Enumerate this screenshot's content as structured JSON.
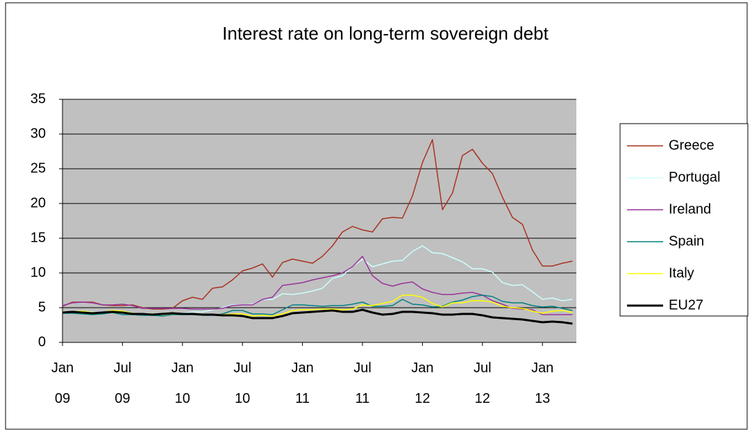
{
  "chart_data": {
    "type": "line",
    "title": "Interest rate on long-term sovereign debt",
    "categories": [
      "Jan 09",
      null,
      null,
      null,
      null,
      null,
      "Jul 09",
      null,
      null,
      null,
      null,
      null,
      "Jan 10",
      null,
      null,
      null,
      null,
      null,
      "Jul 10",
      null,
      null,
      null,
      null,
      null,
      "Jan 11",
      null,
      null,
      null,
      null,
      null,
      "Jul 11",
      null,
      null,
      null,
      null,
      null,
      "Jan 12",
      null,
      null,
      null,
      null,
      null,
      "Jul 12",
      null,
      null,
      null,
      null,
      null,
      "Jan 13",
      null,
      null,
      null
    ],
    "ylim": [
      0,
      35
    ],
    "yticks": [
      0,
      5,
      10,
      15,
      20,
      25,
      30,
      35
    ],
    "grid": true,
    "legend": "right",
    "series": [
      {
        "name": "Greece",
        "color": "#a83220",
        "linewidth": 1.5,
        "values": [
          5.2,
          5.8,
          5.8,
          5.8,
          5.4,
          5.3,
          5.3,
          5.4,
          5.0,
          4.8,
          4.8,
          4.9,
          6.0,
          6.5,
          6.2,
          7.8,
          8.0,
          9.0,
          10.3,
          10.7,
          11.3,
          9.4,
          11.5,
          12.0,
          11.7,
          11.4,
          12.4,
          13.9,
          15.9,
          16.7,
          16.2,
          15.9,
          17.8,
          18.0,
          17.9,
          21.1,
          25.9,
          29.2,
          19.1,
          21.5,
          26.9,
          27.8,
          25.8,
          24.3,
          20.9,
          18.0,
          17.0,
          13.3,
          11.0,
          11.0,
          11.4,
          11.7
        ]
      },
      {
        "name": "Portugal",
        "color": "#ccffff",
        "linewidth": 1.5,
        "values": [
          4.4,
          4.4,
          4.5,
          4.4,
          4.3,
          4.4,
          4.4,
          4.2,
          4.2,
          4.1,
          4.0,
          4.1,
          4.2,
          4.4,
          4.4,
          4.7,
          5.0,
          5.4,
          5.4,
          5.5,
          6.2,
          6.2,
          7.0,
          6.9,
          7.1,
          7.4,
          7.8,
          9.2,
          9.6,
          10.9,
          12.0,
          10.9,
          11.3,
          11.7,
          11.8,
          13.1,
          13.9,
          12.9,
          12.8,
          12.2,
          11.6,
          10.6,
          10.6,
          10.1,
          8.6,
          8.2,
          8.3,
          7.3,
          6.2,
          6.4,
          6.0,
          6.2
        ]
      },
      {
        "name": "Ireland",
        "color": "#993399",
        "linewidth": 1.5,
        "values": [
          5.3,
          5.7,
          5.8,
          5.7,
          5.4,
          5.4,
          5.5,
          5.3,
          4.9,
          4.9,
          4.9,
          4.9,
          4.9,
          4.8,
          4.8,
          4.8,
          4.9,
          5.3,
          5.4,
          5.4,
          6.2,
          6.5,
          8.2,
          8.4,
          8.6,
          9.0,
          9.3,
          9.6,
          10.0,
          10.9,
          12.4,
          9.6,
          8.5,
          8.1,
          8.5,
          8.7,
          7.7,
          7.2,
          6.9,
          6.9,
          7.1,
          7.2,
          6.8,
          6.0,
          5.5,
          4.9,
          4.8,
          4.7,
          4.0,
          4.0,
          4.0,
          4.0
        ]
      },
      {
        "name": "Spain",
        "color": "#008080",
        "linewidth": 1.5,
        "values": [
          4.2,
          4.2,
          4.1,
          4.0,
          4.1,
          4.3,
          4.0,
          4.0,
          3.9,
          3.9,
          3.8,
          4.0,
          4.0,
          4.0,
          3.9,
          3.9,
          4.1,
          4.6,
          4.6,
          4.1,
          4.1,
          4.0,
          4.7,
          5.4,
          5.4,
          5.3,
          5.2,
          5.3,
          5.3,
          5.5,
          5.8,
          5.2,
          5.2,
          5.3,
          6.2,
          5.5,
          5.4,
          5.1,
          5.2,
          5.8,
          6.1,
          6.6,
          6.8,
          6.6,
          5.9,
          5.7,
          5.7,
          5.3,
          5.1,
          5.2,
          4.9,
          4.6
        ]
      },
      {
        "name": "Italy",
        "color": "#ffff00",
        "linewidth": 1.5,
        "values": [
          4.4,
          4.4,
          4.5,
          4.3,
          4.3,
          4.6,
          4.5,
          4.2,
          4.1,
          4.1,
          4.0,
          4.1,
          4.1,
          4.1,
          3.9,
          4.0,
          4.0,
          4.1,
          4.1,
          3.8,
          3.9,
          3.8,
          4.1,
          4.6,
          4.7,
          4.7,
          4.8,
          4.8,
          4.7,
          4.8,
          5.4,
          5.3,
          5.6,
          5.9,
          6.8,
          6.8,
          6.5,
          5.6,
          5.1,
          5.7,
          5.7,
          6.0,
          6.0,
          5.8,
          5.2,
          5.0,
          4.9,
          4.5,
          4.2,
          4.5,
          4.6,
          4.3
        ]
      },
      {
        "name": "EU27",
        "color": "#000000",
        "linewidth": 3,
        "values": [
          4.3,
          4.4,
          4.3,
          4.2,
          4.3,
          4.4,
          4.3,
          4.1,
          4.1,
          4.0,
          4.1,
          4.2,
          4.1,
          4.1,
          4.0,
          4.0,
          3.9,
          3.9,
          3.8,
          3.5,
          3.5,
          3.5,
          3.8,
          4.2,
          4.3,
          4.4,
          4.5,
          4.6,
          4.4,
          4.4,
          4.7,
          4.3,
          4.0,
          4.1,
          4.4,
          4.4,
          4.3,
          4.2,
          4.0,
          4.0,
          4.1,
          4.1,
          3.9,
          3.6,
          3.5,
          3.4,
          3.3,
          3.1,
          2.9,
          3.0,
          2.9,
          2.7
        ]
      }
    ]
  }
}
